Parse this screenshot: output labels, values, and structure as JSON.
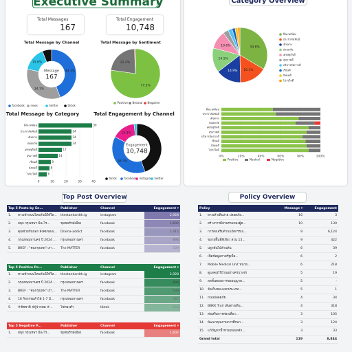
{
  "header": {
    "title": "Executive Summary",
    "right_title": "Category Overview"
  },
  "kpis": [
    {
      "label": "Total Messages",
      "value": "167"
    },
    {
      "label": "Total Engagement",
      "value": "10,748"
    }
  ],
  "chart_data": [
    {
      "type": "donut",
      "title": "Total Message by Channel",
      "center_label": "Message",
      "center_value": "167",
      "categories": [
        "facebook",
        "news",
        "twitter",
        "tiktok"
      ],
      "values": [
        44.3,
        34.1,
        15.6,
        6.0
      ],
      "value_labels": [
        "44.3%",
        "34.1%",
        "15.6%",
        null
      ],
      "colors": [
        "#1e6fd9",
        "#9e9e9e",
        "#29c4e8",
        "#111111"
      ]
    },
    {
      "type": "pie",
      "title": "Total Message by Sentiment",
      "categories": [
        "Positive",
        "Neutral",
        "Negative"
      ],
      "values": [
        77.2,
        22.2,
        0.6
      ],
      "value_labels": [
        "77.2%",
        "22.2%",
        null
      ],
      "colors": [
        "#7cc142",
        "#757575",
        "#e53935"
      ]
    },
    {
      "type": "bar",
      "title": "Total Message by Category",
      "orientation": "horizontal",
      "categories": [
        "สิ่งแวดล้อม",
        "ประชาสัมพันธ์",
        "เดินทาง",
        "ปลอดภัย",
        "เศรษฐกิจดี",
        "สุขภาพดี",
        "เรียนดี",
        "สังคมดี",
        "โปร่งใสดี"
      ],
      "values": [
        39,
        24,
        24,
        24,
        17,
        14,
        9,
        8,
        6
      ],
      "color": "#1e7e4a",
      "xlim": [
        0,
        40
      ],
      "xticks": [
        0,
        10,
        20,
        30,
        40
      ]
    },
    {
      "type": "donut",
      "title": "Total Engagement by Channel",
      "center_label": "Engagement",
      "center_value": "10,748",
      "categories": [
        "tiktok",
        "facebook",
        "instagram",
        "twitter"
      ],
      "values": [
        44.6,
        38.3,
        15.3,
        1.8
      ],
      "value_labels": [
        null,
        "38.3%",
        "15.3%",
        null
      ],
      "colors": [
        "#111111",
        "#1e6fd9",
        "#e91e8c",
        "#29c4e8"
      ]
    },
    {
      "type": "pie",
      "title": "Category Overview",
      "categories": [
        "สิ่งแวดล้อม",
        "ประชาสัมพันธ์",
        "เดินทาง",
        "ปลอดภัย",
        "เศรษฐกิจดี",
        "สุขภาพดี",
        "บริหารจัดการดี",
        "เรียนดี",
        "สังคมดี",
        "โปร่งใสดี"
      ],
      "values": [
        33.6,
        16.1,
        14.9,
        14.5,
        10.6,
        3.2,
        2.4,
        1.8,
        1.6,
        1.3
      ],
      "value_labels": [
        "33.6%",
        "16.1%",
        "14.9%",
        "14.5%",
        "10.6%",
        null,
        null,
        null,
        null,
        null
      ],
      "colors": [
        "#7cb342",
        "#f4511e",
        "#1a3fa0",
        "#8bd17c",
        "#f48fb1",
        "#9e9e9e",
        "#4fc3f7",
        "#1565c0",
        "#fbc02d",
        "#ff9800"
      ]
    },
    {
      "type": "stacked_bar",
      "orientation": "horizontal",
      "categories": [
        "สิ่งแวดล้อม",
        "ประชาสัมพันธ์",
        "เดินทาง",
        "ปลอดภัย",
        "เศรษฐกิจดี",
        "สุขภาพดี",
        "บริหารจัดการดี",
        "เรียนดี",
        "สังคมดี",
        "โปร่งใสดี"
      ],
      "series": [
        {
          "name": "Positive",
          "color": "#8bc34a",
          "values": [
            52,
            55,
            78,
            75,
            88,
            86,
            82,
            85,
            86,
            88
          ]
        },
        {
          "name": "Neutral",
          "color": "#757575",
          "values": [
            48,
            45,
            22,
            19,
            12,
            14,
            18,
            15,
            14,
            12
          ]
        },
        {
          "name": "Negative",
          "color": "#e53935",
          "values": [
            0,
            0,
            0,
            6,
            0,
            0,
            0,
            0,
            0,
            0
          ]
        }
      ],
      "xlim": [
        0,
        100
      ],
      "xticks": [
        {
          "value": 0,
          "label": "0%"
        },
        {
          "value": 20,
          "label": "20%"
        },
        {
          "value": 40,
          "label": "40%"
        },
        {
          "value": 60,
          "label": "60%"
        },
        {
          "value": 80,
          "label": "80%"
        },
        {
          "value": 100,
          "label": "100%"
        }
      ]
    }
  ],
  "top_posts": {
    "title": "Top Post Overview",
    "tables": [
      {
        "columns": [
          "Top 5 Posts by En...",
          "Publisher",
          "Channel",
          "Engagement ▾"
        ],
        "rows": [
          [
            "1.",
            "ทางเข้าถนนไหนกันนี่ให้ใหญ่...",
            "thestandardth.ig",
            "instagram",
            "2,928"
          ],
          [
            "2.",
            "สนุก กรุงเทพฯ มีอะไร...",
            "ชุมชนรักษ์เมือง",
            "facebook",
            "1,602"
          ],
          [
            "3.",
            "คุณช่วยกันบอก สังคมของเรา...",
            "Drama-addict",
            "facebook",
            "1,415"
          ],
          [
            "4.",
            "กรุงเทพมหานคร ปี 2024 ไ...",
            "กรุงเทพมหานคร",
            "facebook",
            "894"
          ],
          [
            "5.",
            "BREF : \"คนกรุงเทพ\" เรา...",
            "The MATTER",
            "facebook",
            "539"
          ]
        ]
      },
      {
        "columns": [
          "Top 5 Positive Po...",
          "Publisher",
          "Channel",
          "Engagement ▾"
        ],
        "rows": [
          [
            "1.",
            "ทางเข้าถนนไหนกันนี่ให้ใหญ่...",
            "thestandardth.ig",
            "instagram",
            "2,928"
          ],
          [
            "2.",
            "กรุงเทพมหานคร ปี 2024 ไ...",
            "กรุงเทพมหานคร",
            "facebook",
            "894"
          ],
          [
            "3.",
            "BREF : \"คนกรุงเทพ\" เรา...",
            "The MATTER",
            "facebook",
            "539"
          ],
          [
            "4.",
            "16 กิจกรรมทำได้ 1-7 มี...",
            "กรุงเทพมหานคร",
            "facebook",
            "387"
          ],
          [
            "5.",
            "#ชัชชาติ #ผู้ว่ากทม #...",
            "โซ่ทองคำ",
            "tiktok",
            "150"
          ]
        ]
      },
      {
        "columns": [
          "Top 5 Negative P...",
          "Publisher",
          "Channel",
          "Engagement ▾"
        ],
        "rows": [
          [
            "1.",
            "สนุก กรุงเทพฯ มีอะไร...",
            "ชุมชนรักษ์เมือง",
            "facebook",
            "1,602"
          ]
        ]
      }
    ]
  },
  "policy": {
    "title": "Policy Overview",
    "columns": [
      "Policy",
      "Message ▾",
      "Engagement"
    ],
    "rows": [
      [
        "1.",
        "ทางเท้าเดินง่าย ปลอดภัย...",
        "16",
        "3"
      ],
      [
        "2.",
        "สร้างการมีส่วนร่วมของผู้ค...",
        "10",
        "130"
      ],
      [
        "3.",
        "การส่งเสริมด้านนวัตกรรมเ...",
        "9",
        "6,124"
      ],
      [
        "4.",
        "ขยายพื้นที่สีเขียว สวน 15...",
        "9",
        "422"
      ],
      [
        "5.",
        "ปลูกต้นไม้ล้านต้น",
        "6",
        "39"
      ],
      [
        "6.",
        "เปิดข้อมูลภาครัฐเพื่อ...",
        "6",
        "2"
      ],
      [
        "7.",
        "Mobile Medical Unit หน่วย...",
        "6",
        "218"
      ],
      [
        "8.",
        "ดูแลคนไร้บ้านอย่างครบวงจร",
        "5",
        "19"
      ],
      [
        "9.",
        "ลดขั้นตอนการขออนุญาต...",
        "5",
        "-"
      ],
      [
        "10.",
        "จัดเก็บขยะแยกประเภท...",
        "5",
        "1"
      ],
      [
        "11.",
        "ถนนปลอดภัย",
        "4",
        "34"
      ],
      [
        "12.",
        "BBKK Trail เส้นทางเดิน...",
        "4",
        "318"
      ],
      [
        "13.",
        "ส่งเสริมการท่องเที่ยว...",
        "3",
        "105"
      ],
      [
        "14.",
        "พัฒนาคุณภาพการศึกษา...",
        "3",
        "124"
      ],
      [
        "15.",
        "แก้ปัญหาน้ำท่วมถนนหลัก...",
        "3",
        "33"
      ]
    ],
    "total": [
      "Grand total",
      "119",
      "8,844"
    ]
  }
}
